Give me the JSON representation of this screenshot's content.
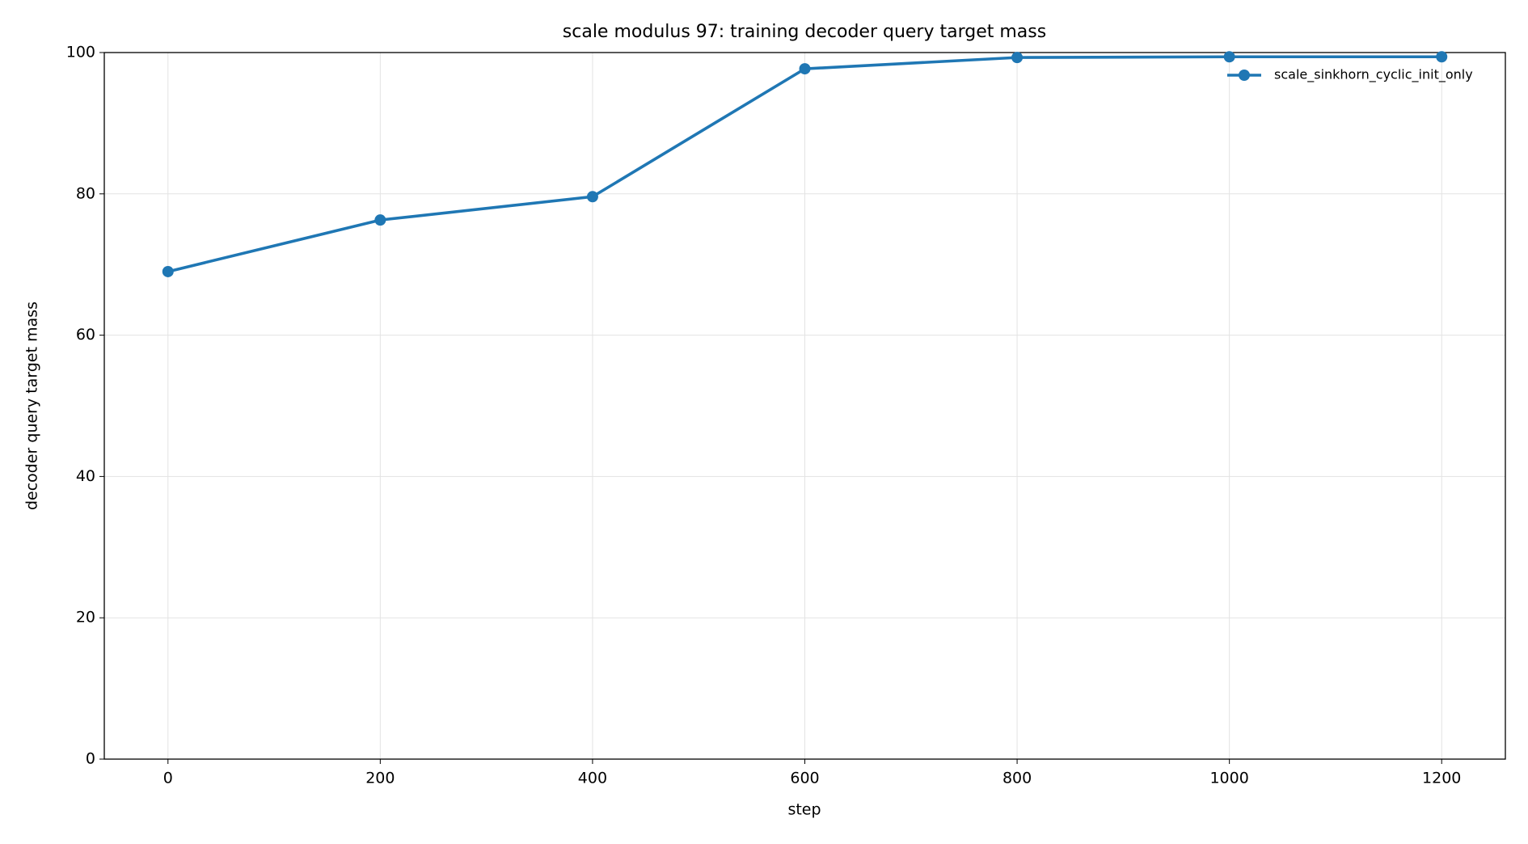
{
  "chart_data": {
    "type": "line",
    "title": "scale modulus 97: training decoder query target mass",
    "xlabel": "step",
    "ylabel": "decoder query target mass",
    "x": [
      0,
      200,
      400,
      600,
      800,
      1000,
      1200
    ],
    "series": [
      {
        "name": "scale_sinkhorn_cyclic_init_only",
        "color": "#1f77b4",
        "values": [
          69.0,
          76.3,
          79.6,
          97.7,
          99.3,
          99.4,
          99.4
        ]
      }
    ],
    "xlim": [
      -60,
      1260
    ],
    "xticks": [
      0,
      200,
      400,
      600,
      800,
      1000,
      1200
    ],
    "ylim": [
      0,
      100
    ],
    "yticks": [
      0,
      20,
      40,
      60,
      80,
      100
    ],
    "grid": true,
    "legend": "upper right"
  }
}
